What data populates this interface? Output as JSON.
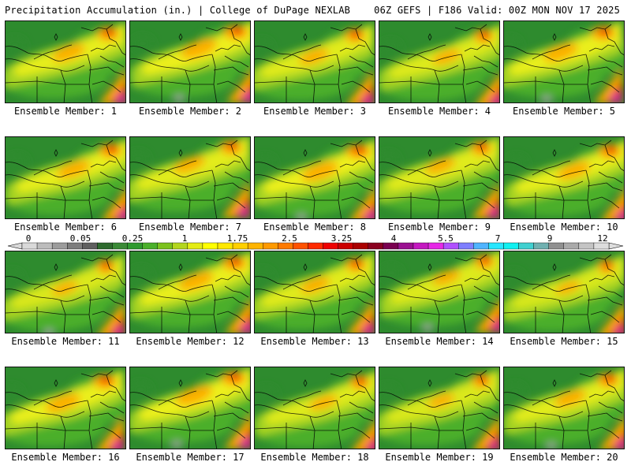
{
  "header": {
    "title": "Precipitation Accumulation (in.) | College of DuPage NEXLAB",
    "run_info": "06Z GEFS | F186 Valid: 00Z MON NOV 17 2025"
  },
  "colorbar": {
    "labels": [
      "0",
      "0.05",
      "0.25",
      "1",
      "1.75",
      "2.5",
      "3.25",
      "4",
      "5.5",
      "7",
      "9",
      "12"
    ],
    "colors": [
      "#d9d9d9",
      "#bcbcbc",
      "#9c9c9c",
      "#7d7d7d",
      "#5f5f5f",
      "#2e6b2e",
      "#3a8a36",
      "#2f9a2f",
      "#4ab02a",
      "#7cc21e",
      "#b3d61e",
      "#e4ec14",
      "#ffff00",
      "#ffe800",
      "#ffd000",
      "#ffb400",
      "#ff9a00",
      "#ff7a00",
      "#ff5200",
      "#ff2a00",
      "#ee0000",
      "#cc0000",
      "#aa0000",
      "#8a0020",
      "#7a0050",
      "#9a1090",
      "#c418c0",
      "#e628e6",
      "#b050ff",
      "#7f7fff",
      "#50b4ff",
      "#28e6ff",
      "#10f0f0",
      "#40d0d0",
      "#70b0b0",
      "#909090",
      "#aaaaaa",
      "#c4c4c4",
      "#dddddd"
    ]
  },
  "members": [
    {
      "label": "Ensemble Member: 1"
    },
    {
      "label": "Ensemble Member: 2"
    },
    {
      "label": "Ensemble Member: 3"
    },
    {
      "label": "Ensemble Member: 4"
    },
    {
      "label": "Ensemble Member: 5"
    },
    {
      "label": "Ensemble Member: 6"
    },
    {
      "label": "Ensemble Member: 7"
    },
    {
      "label": "Ensemble Member: 8"
    },
    {
      "label": "Ensemble Member: 9"
    },
    {
      "label": "Ensemble Member: 10"
    },
    {
      "label": "Ensemble Member: 11"
    },
    {
      "label": "Ensemble Member: 12"
    },
    {
      "label": "Ensemble Member: 13"
    },
    {
      "label": "Ensemble Member: 14"
    },
    {
      "label": "Ensemble Member: 15"
    },
    {
      "label": "Ensemble Member: 16"
    },
    {
      "label": "Ensemble Member: 17"
    },
    {
      "label": "Ensemble Member: 18"
    },
    {
      "label": "Ensemble Member: 19"
    },
    {
      "label": "Ensemble Member: 20"
    }
  ],
  "palette": {
    "dark_green": "#2e8b2e",
    "green": "#4caf2a",
    "yellow_green": "#a8d424",
    "yellow": "#f2f21a",
    "orange": "#ffa500",
    "red": "#e61e00",
    "magenta": "#d020c8",
    "gray": "#a0a0a0"
  }
}
